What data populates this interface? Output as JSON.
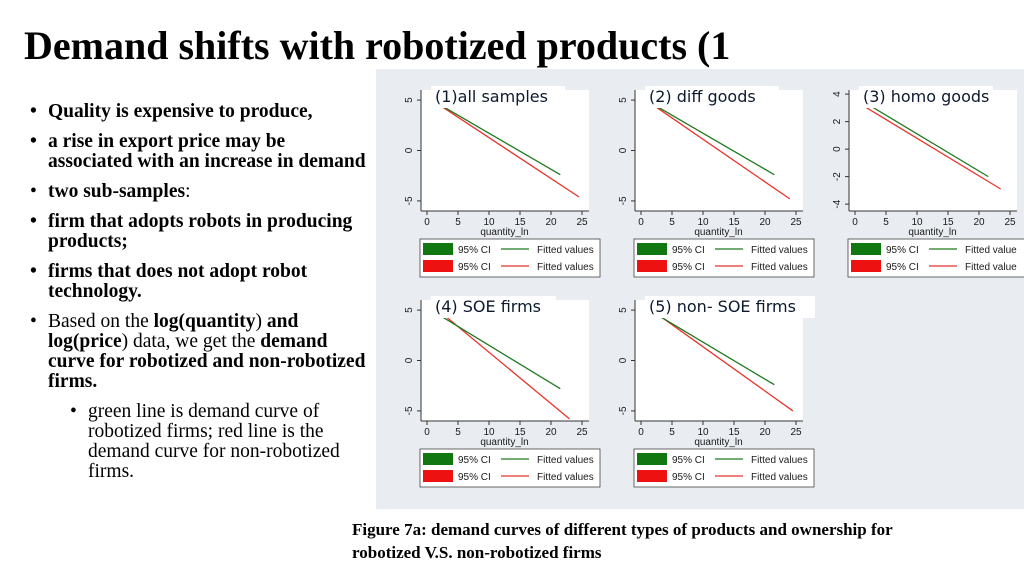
{
  "slide": {
    "title": "Demand shifts with robotized products (1",
    "bullets": [
      {
        "text": "Quality is expensive to produce,"
      },
      {
        "text": "a rise in export price may be associated with an increase in demand"
      },
      {
        "text": "two sub-samples",
        "suffix": ":"
      },
      {
        "text": "firm that adopts robots in producing products;"
      },
      {
        "text": "firms that does not adopt robot technology."
      },
      {
        "p1": "Based on the ",
        "b1": "log(quantity",
        "p2": ") ",
        "b2": "and log(price",
        "p3": ") data, we get the ",
        "b3": "demand curve for robotized and non-robotized firms."
      },
      {
        "text": "green line is demand curve of robotized firms; red line is the demand curve for non-robotized firms."
      }
    ],
    "caption": "Figure 7a: demand curves of different types of products and ownership for robotized V.S. non-robotized firms"
  },
  "colors": {
    "panel_bg": "#e9edf1",
    "green": "#1f7a1f",
    "red": "#e8322a",
    "ci_green": "#117711",
    "ci_red": "#ee1111"
  },
  "chart_data": [
    {
      "type": "line",
      "title": "(1)all samples",
      "xlabel": "quantity_ln",
      "ylabel": "",
      "xlim": [
        0,
        25
      ],
      "ylim": [
        -6,
        6
      ],
      "xticks": [
        0,
        5,
        10,
        15,
        20,
        25
      ],
      "yticks": [
        5,
        0,
        -5
      ],
      "grid": false,
      "legend": [
        "95% CI",
        "Fitted values",
        "95% CI",
        "Fitted values"
      ],
      "series": [
        {
          "color": "green",
          "x": [
            0.8,
            21.5
          ],
          "y": [
            5.0,
            -2.4
          ]
        },
        {
          "color": "red",
          "x": [
            0.8,
            24.5
          ],
          "y": [
            5.0,
            -4.6
          ]
        }
      ]
    },
    {
      "type": "line",
      "title": "(2) diff goods",
      "xlabel": "quantity_ln",
      "ylabel": "",
      "xlim": [
        0,
        25
      ],
      "ylim": [
        -6,
        6
      ],
      "xticks": [
        0,
        5,
        10,
        15,
        20,
        25
      ],
      "yticks": [
        5,
        0,
        -5
      ],
      "grid": false,
      "legend": [
        "95% CI",
        "Fitted values",
        "95% CI",
        "Fitted values"
      ],
      "series": [
        {
          "color": "green",
          "x": [
            0.8,
            21.5
          ],
          "y": [
            5.0,
            -2.4
          ]
        },
        {
          "color": "red",
          "x": [
            0.8,
            24.0
          ],
          "y": [
            5.0,
            -4.8
          ]
        }
      ]
    },
    {
      "type": "line",
      "title": "(3) homo goods",
      "xlabel": "quantity_ln",
      "ylabel": "",
      "xlim": [
        0,
        25
      ],
      "ylim": [
        -4.5,
        4.3
      ],
      "xticks": [
        0,
        5,
        10,
        15,
        20,
        25
      ],
      "yticks": [
        4,
        2,
        0,
        -2,
        -4
      ],
      "grid": false,
      "legend": [
        "95% CI",
        "Fitted value",
        "95% CI",
        "Fitted value"
      ],
      "series": [
        {
          "color": "green",
          "x": [
            0.8,
            21.5
          ],
          "y": [
            3.6,
            -2.0
          ]
        },
        {
          "color": "red",
          "x": [
            0.8,
            23.5
          ],
          "y": [
            3.3,
            -2.9
          ]
        }
      ]
    },
    {
      "type": "line",
      "title": "(4) SOE firms",
      "xlabel": "quantity_ln",
      "ylabel": "",
      "xlim": [
        0,
        25
      ],
      "ylim": [
        -6,
        6
      ],
      "xticks": [
        0,
        5,
        10,
        15,
        20,
        25
      ],
      "yticks": [
        5,
        0,
        -5
      ],
      "grid": false,
      "legend": [
        "95% CI",
        "Fitted values",
        "95% CI",
        "Fitted values"
      ],
      "series": [
        {
          "color": "green",
          "x": [
            1.2,
            21.5
          ],
          "y": [
            4.8,
            -2.8
          ]
        },
        {
          "color": "red",
          "x": [
            0.8,
            23.0
          ],
          "y": [
            5.5,
            -5.8
          ]
        }
      ]
    },
    {
      "type": "line",
      "title": "(5) non- SOE firms",
      "xlabel": "quantity_ln",
      "ylabel": "",
      "xlim": [
        0,
        25
      ],
      "ylim": [
        -6,
        6
      ],
      "xticks": [
        0,
        5,
        10,
        15,
        20,
        25
      ],
      "yticks": [
        5,
        0,
        -5
      ],
      "grid": false,
      "legend": [
        "95% CI",
        "Fitted values",
        "95% CI",
        "Fitted values"
      ],
      "series": [
        {
          "color": "green",
          "x": [
            0.8,
            21.5
          ],
          "y": [
            5.2,
            -2.4
          ]
        },
        {
          "color": "red",
          "x": [
            0.8,
            24.5
          ],
          "y": [
            5.4,
            -5.0
          ]
        }
      ]
    }
  ]
}
